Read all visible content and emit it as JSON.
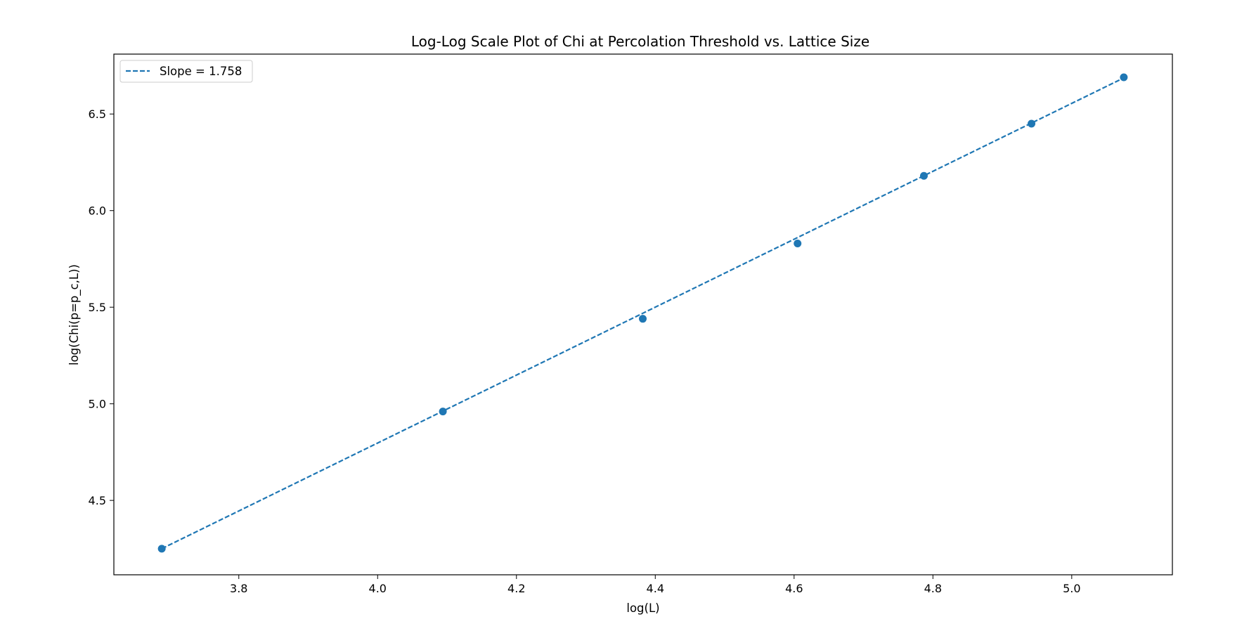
{
  "chart_data": {
    "type": "scatter",
    "title": "Log-Log Scale Plot of Chi at Percolation Threshold vs. Lattice Size",
    "xlabel": "log(L)",
    "ylabel": "log(Chi(p=p_c,L))",
    "xlim": [
      3.62,
      5.145
    ],
    "ylim": [
      4.115,
      6.81
    ],
    "xticks": [
      3.8,
      4.0,
      4.2,
      4.4,
      4.6,
      4.8,
      5.0
    ],
    "xtick_labels": [
      "3.8",
      "4.0",
      "4.2",
      "4.4",
      "4.6",
      "4.8",
      "5.0"
    ],
    "yticks": [
      4.5,
      5.0,
      5.5,
      6.0,
      6.5
    ],
    "ytick_labels": [
      "4.5",
      "5.0",
      "5.5",
      "6.0",
      "6.5"
    ],
    "grid": false,
    "legend_position": "top-left",
    "series": [
      {
        "kind": "points",
        "color": "#1f77b4",
        "x": [
          3.689,
          4.094,
          4.382,
          4.605,
          4.787,
          4.942,
          5.075
        ],
        "y": [
          4.25,
          4.96,
          5.44,
          5.83,
          6.18,
          6.45,
          6.69
        ]
      },
      {
        "kind": "fit-line",
        "name": "Slope = 1.758",
        "color": "#1f77b4",
        "line_style": "dashed",
        "slope": 1.758,
        "intercept": -2.235,
        "x_range": [
          3.689,
          5.075
        ]
      }
    ]
  }
}
